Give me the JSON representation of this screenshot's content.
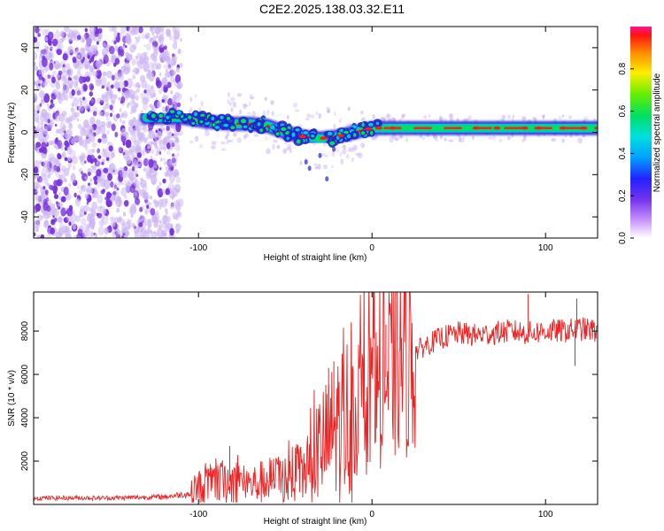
{
  "title": "C2E2.2025.138.03.32.E11",
  "colors": {
    "snr_line": "#ee2222",
    "scatter_noise": "#7733dd",
    "scatter_faint": "#cbb3f2",
    "signal_core": "#ff1a1a",
    "signal_mid": "#00e060",
    "signal_outer": "#00c8e0",
    "signal_edge": "#2222cc"
  },
  "chart_data": [
    {
      "type": "heatmap",
      "name": "spectrogram",
      "xlabel": "Height of straight line (km)",
      "ylabel": "Frequency (Hz)",
      "xlim": [
        -195,
        130
      ],
      "ylim": [
        -50,
        50
      ],
      "x_ticks": [
        -100,
        0,
        100
      ],
      "x_tick_labels": [
        "-100",
        "0",
        "100"
      ],
      "y_ticks": [
        -40,
        -20,
        0,
        20,
        40
      ],
      "y_tick_labels": [
        "-40",
        "-20",
        "0",
        "20",
        "40"
      ],
      "noise_region_x": [
        -195,
        -110
      ],
      "signal_track": {
        "x": [
          -130,
          -110,
          -95,
          -80,
          -70,
          -60,
          -50,
          -40,
          -30,
          -20,
          -10,
          0,
          10,
          20,
          40,
          60,
          80,
          100,
          130
        ],
        "freq": [
          7,
          7,
          5,
          4,
          4,
          3,
          0,
          -2,
          -3,
          -2,
          0,
          2,
          2,
          2,
          2,
          2,
          2,
          2,
          2
        ]
      },
      "colorbar": {
        "label": "Normalized spectral amplitude",
        "range": [
          0,
          1
        ],
        "ticks": [
          0.0,
          0.2,
          0.4,
          0.6,
          0.8
        ],
        "tick_labels": [
          "0.0",
          "0.2",
          "0.4",
          "0.6",
          "0.8"
        ]
      }
    },
    {
      "type": "line",
      "name": "snr",
      "xlabel": "Height of straight line (km)",
      "ylabel": "SNR (10 * v/v)",
      "xlim": [
        -195,
        130
      ],
      "ylim": [
        0,
        9800
      ],
      "x_ticks": [
        -100,
        0,
        100
      ],
      "x_tick_labels": [
        "-100",
        "0",
        "100"
      ],
      "y_ticks": [
        2000,
        4000,
        6000,
        8000
      ],
      "y_tick_labels": [
        "2000",
        "4000",
        "6000",
        "8000"
      ],
      "envelope": {
        "x": [
          -195,
          -150,
          -120,
          -105,
          -100,
          -90,
          -80,
          -70,
          -60,
          -50,
          -40,
          -35,
          -30,
          -25,
          -20,
          -15,
          -10,
          -5,
          0,
          10,
          20,
          30,
          40,
          50,
          60,
          70,
          80,
          90,
          100,
          110,
          120,
          130
        ],
        "y": [
          300,
          300,
          350,
          500,
          800,
          1000,
          1100,
          900,
          1100,
          1200,
          1400,
          2000,
          2600,
          3000,
          3600,
          4000,
          3800,
          4400,
          4600,
          6200,
          6800,
          7300,
          7700,
          7900,
          7800,
          7900,
          8000,
          7900,
          8000,
          8000,
          8100,
          8000
        ]
      },
      "spikes": [
        {
          "x": -82,
          "y": 2700
        },
        {
          "x": -25,
          "y": 6300
        },
        {
          "x": -22,
          "y": 6600
        },
        {
          "x": -12,
          "y": 8400
        },
        {
          "x": 8,
          "y": 8300
        },
        {
          "x": 90,
          "y": 9700
        },
        {
          "x": 118,
          "y": 9500
        },
        {
          "x": 117,
          "y": 6400
        }
      ]
    }
  ]
}
